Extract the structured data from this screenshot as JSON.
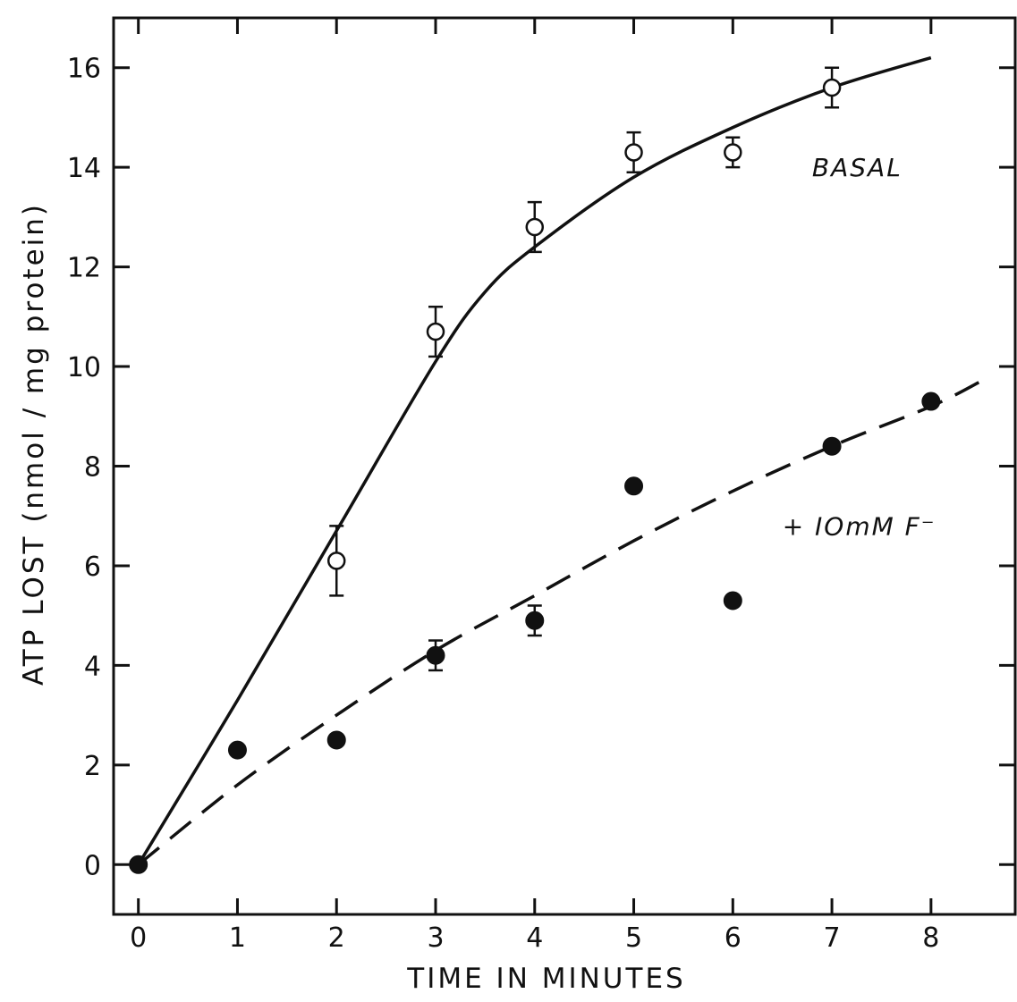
{
  "chart_data": {
    "type": "scatter",
    "xlabel": "TIME IN MINUTES",
    "ylabel": "ATP LOST (nmol / mg protein)",
    "xlim": [
      -0.25,
      8.85
    ],
    "ylim": [
      -1,
      17
    ],
    "xticks": [
      "0",
      "1",
      "2",
      "3",
      "4",
      "5",
      "6",
      "7",
      "8"
    ],
    "yticks": [
      "0",
      "2",
      "4",
      "6",
      "8",
      "10",
      "12",
      "14",
      "16"
    ],
    "grid": false,
    "legend": "none",
    "series": [
      {
        "marker": "open-circle",
        "line": "solid",
        "points": [
          {
            "x": 0,
            "y": 0,
            "err": 0
          },
          {
            "x": 2,
            "y": 6.1,
            "err": 0.7
          },
          {
            "x": 3,
            "y": 10.7,
            "err": 0.5
          },
          {
            "x": 4,
            "y": 12.8,
            "err": 0.5
          },
          {
            "x": 5,
            "y": 14.3,
            "err": 0.4
          },
          {
            "x": 6,
            "y": 14.3,
            "err": 0.3
          },
          {
            "x": 7,
            "y": 15.6,
            "err": 0.4
          }
        ],
        "curve": [
          [
            0,
            0
          ],
          [
            1,
            3.3
          ],
          [
            2,
            6.7
          ],
          [
            3,
            10.1
          ],
          [
            3.5,
            11.5
          ],
          [
            4,
            12.4
          ],
          [
            5,
            13.8
          ],
          [
            6,
            14.8
          ],
          [
            7,
            15.6
          ],
          [
            8,
            16.2
          ]
        ]
      },
      {
        "marker": "filled-circle",
        "line": "dashed",
        "points": [
          {
            "x": 0,
            "y": 0,
            "err": 0
          },
          {
            "x": 1,
            "y": 2.3,
            "err": 0
          },
          {
            "x": 2,
            "y": 2.5,
            "err": 0
          },
          {
            "x": 3,
            "y": 4.2,
            "err": 0.3
          },
          {
            "x": 4,
            "y": 4.9,
            "err": 0.3
          },
          {
            "x": 5,
            "y": 7.6,
            "err": 0
          },
          {
            "x": 6,
            "y": 5.3,
            "err": 0
          },
          {
            "x": 7,
            "y": 8.4,
            "err": 0
          },
          {
            "x": 8,
            "y": 9.3,
            "err": 0
          }
        ],
        "curve": [
          [
            0,
            0
          ],
          [
            1,
            1.6
          ],
          [
            2,
            3.0
          ],
          [
            3,
            4.3
          ],
          [
            4,
            5.4
          ],
          [
            5,
            6.5
          ],
          [
            6,
            7.5
          ],
          [
            7,
            8.4
          ],
          [
            8,
            9.2
          ],
          [
            8.5,
            9.7
          ]
        ]
      }
    ],
    "annotations": [
      {
        "text": "BASAL",
        "x": 6.8,
        "y": 14
      },
      {
        "text": "+ IOmM F⁻",
        "x": 6.5,
        "y": 6.8
      }
    ]
  }
}
